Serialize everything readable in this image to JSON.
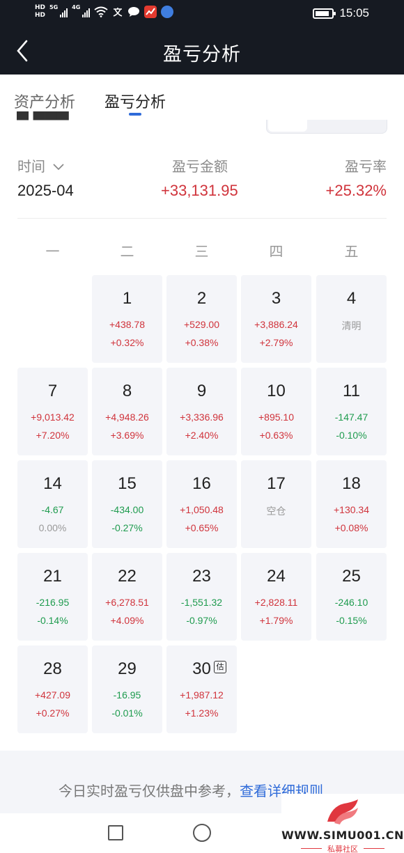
{
  "status_bar": {
    "hd1": "HD",
    "hd2": "HD",
    "net1": "5G",
    "net2": "4G",
    "time": "15:05"
  },
  "header": {
    "title": "盈亏分析"
  },
  "tabs": [
    {
      "label": "资产分析",
      "active": false
    },
    {
      "label": "盈亏分析",
      "active": true
    }
  ],
  "summary": {
    "time_label": "时间",
    "pnl_label": "盈亏金额",
    "rate_label": "盈亏率",
    "month": "2025-04",
    "pnl_value": "+33,131.95",
    "rate_value": "+25.32%"
  },
  "calendar": {
    "weekdays": [
      "一",
      "二",
      "三",
      "四",
      "五"
    ],
    "days": [
      {
        "day": "1",
        "amount": "+438.78",
        "pct": "+0.32%",
        "amount_color": "red",
        "pct_color": "red"
      },
      {
        "day": "2",
        "amount": "+529.00",
        "pct": "+0.38%",
        "amount_color": "red",
        "pct_color": "red"
      },
      {
        "day": "3",
        "amount": "+3,886.24",
        "pct": "+2.79%",
        "amount_color": "red",
        "pct_color": "red"
      },
      {
        "day": "4",
        "amount": "清明",
        "pct": "",
        "amount_color": "grey",
        "pct_color": "grey"
      },
      {
        "day": "7",
        "amount": "+9,013.42",
        "pct": "+7.20%",
        "amount_color": "red",
        "pct_color": "red"
      },
      {
        "day": "8",
        "amount": "+4,948.26",
        "pct": "+3.69%",
        "amount_color": "red",
        "pct_color": "red"
      },
      {
        "day": "9",
        "amount": "+3,336.96",
        "pct": "+2.40%",
        "amount_color": "red",
        "pct_color": "red"
      },
      {
        "day": "10",
        "amount": "+895.10",
        "pct": "+0.63%",
        "amount_color": "red",
        "pct_color": "red"
      },
      {
        "day": "11",
        "amount": "-147.47",
        "pct": "-0.10%",
        "amount_color": "green",
        "pct_color": "green"
      },
      {
        "day": "14",
        "amount": "-4.67",
        "pct": "0.00%",
        "amount_color": "green",
        "pct_color": "grey"
      },
      {
        "day": "15",
        "amount": "-434.00",
        "pct": "-0.27%",
        "amount_color": "green",
        "pct_color": "green"
      },
      {
        "day": "16",
        "amount": "+1,050.48",
        "pct": "+0.65%",
        "amount_color": "red",
        "pct_color": "red"
      },
      {
        "day": "17",
        "amount": "空仓",
        "pct": "",
        "amount_color": "grey",
        "pct_color": "grey"
      },
      {
        "day": "18",
        "amount": "+130.34",
        "pct": "+0.08%",
        "amount_color": "red",
        "pct_color": "red"
      },
      {
        "day": "21",
        "amount": "-216.95",
        "pct": "-0.14%",
        "amount_color": "green",
        "pct_color": "green"
      },
      {
        "day": "22",
        "amount": "+6,278.51",
        "pct": "+4.09%",
        "amount_color": "red",
        "pct_color": "red"
      },
      {
        "day": "23",
        "amount": "-1,551.32",
        "pct": "-0.97%",
        "amount_color": "green",
        "pct_color": "green"
      },
      {
        "day": "24",
        "amount": "+2,828.11",
        "pct": "+1.79%",
        "amount_color": "red",
        "pct_color": "red"
      },
      {
        "day": "25",
        "amount": "-246.10",
        "pct": "-0.15%",
        "amount_color": "green",
        "pct_color": "green"
      },
      {
        "day": "28",
        "amount": "+427.09",
        "pct": "+0.27%",
        "amount_color": "red",
        "pct_color": "red"
      },
      {
        "day": "29",
        "amount": "-16.95",
        "pct": "-0.01%",
        "amount_color": "green",
        "pct_color": "green"
      },
      {
        "day": "30",
        "amount": "+1,987.12",
        "pct": "+1.23%",
        "amount_color": "red",
        "pct_color": "red",
        "badge": "估"
      }
    ]
  },
  "footer": {
    "notice": "今日实时盈亏仅供盘中参考，",
    "link": "查看详细规则"
  },
  "watermark": {
    "url": "WWW.SIMU001.CN",
    "sub": "私募社区"
  },
  "colors": {
    "profit": "#d0333b",
    "loss": "#1e9b4e",
    "neutral": "#999999",
    "accent": "#2f6bd9",
    "header_bg": "#161a22"
  }
}
